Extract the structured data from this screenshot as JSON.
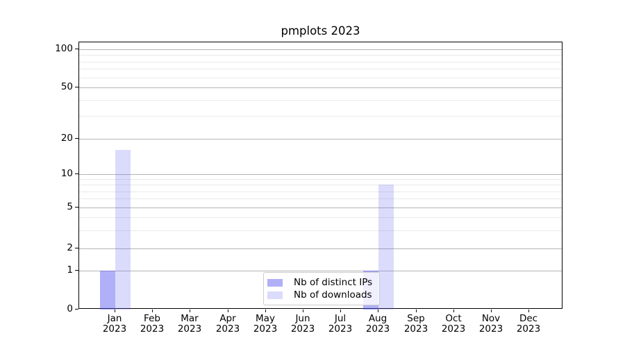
{
  "chart_data": {
    "type": "bar",
    "title": "pmplots 2023",
    "categories": [
      "Jan",
      "Feb",
      "Mar",
      "Apr",
      "May",
      "Jun",
      "Jul",
      "Aug",
      "Sep",
      "Oct",
      "Nov",
      "Dec"
    ],
    "category_year": "2023",
    "series": [
      {
        "name": "Nb of distinct IPs",
        "color": "rgba(80,80,240,0.45)",
        "values": [
          1,
          0,
          0,
          0,
          0,
          0,
          0,
          1,
          0,
          0,
          0,
          0
        ]
      },
      {
        "name": "Nb of downloads",
        "color": "rgba(100,100,240,0.23)",
        "values": [
          16,
          0,
          0,
          0,
          0,
          0,
          0,
          8,
          0,
          0,
          0,
          0
        ]
      }
    ],
    "yticks": [
      0,
      1,
      2,
      5,
      10,
      20,
      50,
      100
    ],
    "minor_gridlines": [
      3,
      4,
      6,
      7,
      8,
      9,
      30,
      40,
      60,
      70,
      80,
      90
    ],
    "yscale": "symlog",
    "ylim": [
      0,
      115
    ],
    "xlabel": "",
    "ylabel": "",
    "grid": true,
    "legend": {
      "position": "lower center",
      "entries": [
        "Nb of distinct IPs",
        "Nb of downloads"
      ]
    },
    "colors": {
      "grid_major": "#b4b4b4",
      "grid_minor": "#e9e9e9",
      "text": "#000000",
      "spine": "#000000",
      "background": "#ffffff"
    }
  }
}
